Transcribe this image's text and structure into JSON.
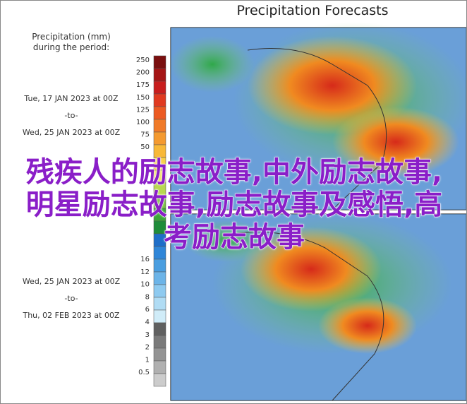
{
  "header": {
    "title": "Precipitation Forecasts"
  },
  "legend": {
    "label_lines": [
      "Precipitation (mm)",
      "during the period:"
    ]
  },
  "periods": [
    {
      "start": "Tue, 17 JAN 2023 at 00Z",
      "to": "-to-",
      "end": "Wed, 25 JAN 2023 at 00Z"
    },
    {
      "start": "Wed, 25 JAN 2023 at 00Z",
      "to": "-to-",
      "end": "Thu, 02 FEB 2023 at 00Z"
    }
  ],
  "colorbar": {
    "top_ticks": [
      "250",
      "200",
      "175",
      "150",
      "125",
      "100",
      "75",
      "50"
    ],
    "bottom_ticks": [
      "16",
      "12",
      "10",
      "8",
      "6",
      "4",
      "3",
      "2",
      "1",
      "0.5"
    ]
  },
  "overlay": {
    "text": "残疾人的励志故事,中外励志故事,明星励志故事,励志故事及感悟,高考励志故事"
  }
}
